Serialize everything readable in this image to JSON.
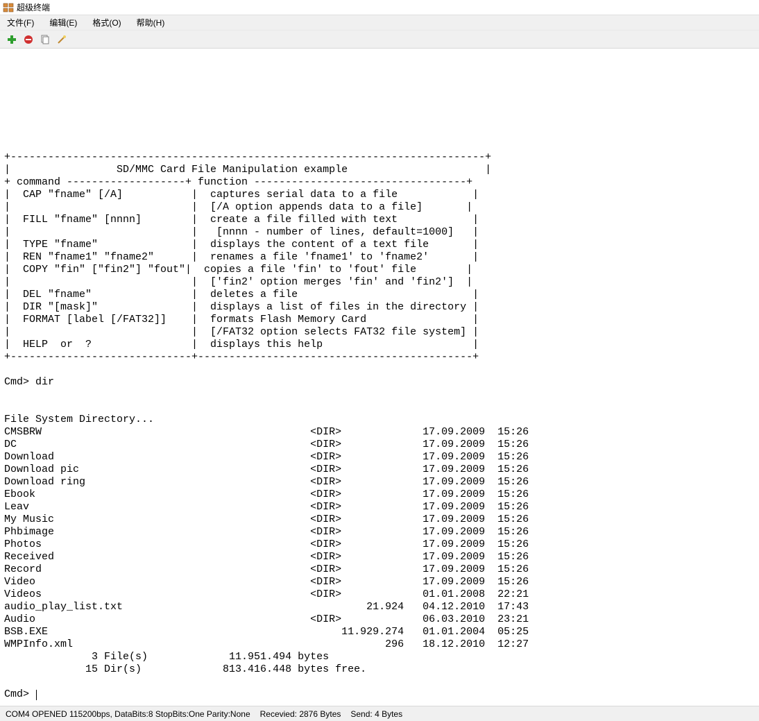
{
  "window": {
    "title": "超级终端"
  },
  "menu": {
    "file": "文件(F)",
    "edit": "编辑(E)",
    "format": "格式(O)",
    "help": "帮助(H)"
  },
  "toolbar": {
    "add_icon": "add-icon",
    "remove_icon": "remove-icon",
    "copy_icon": "copy-icon",
    "wand_icon": "wand-icon"
  },
  "terminal": {
    "blank_lead_lines": 8,
    "help_header_border": "+----------------------------------------------------------------------------+",
    "help_title": "|                 SD/MMC Card File Manipulation example                      |",
    "help_subheader": "+ command -------------------+ function ----------------------------------+",
    "help_rows": [
      "|  CAP \"fname\" [/A]           |  captures serial data to a file            |",
      "|                             |  [/A option appends data to a file]       |",
      "|  FILL \"fname\" [nnnn]        |  create a file filled with text            |",
      "|                             |   [nnnn - number of lines, default=1000]   |",
      "|  TYPE \"fname\"               |  displays the content of a text file       |",
      "|  REN \"fname1\" \"fname2\"      |  renames a file 'fname1' to 'fname2'       |",
      "|  COPY \"fin\" [\"fin2\"] \"fout\"|  copies a file 'fin' to 'fout' file        |",
      "|                             |  ['fin2' option merges 'fin' and 'fin2']  |",
      "|  DEL \"fname\"                |  deletes a file                            |",
      "|  DIR \"[mask]\"               |  displays a list of files in the directory |",
      "|  FORMAT [label [/FAT32]]    |  formats Flash Memory Card                 |",
      "|                             |  [/FAT32 option selects FAT32 file system] |",
      "|  HELP  or  ?                |  displays this help                        |"
    ],
    "help_footer_border": "+-----------------------------+--------------------------------------------+",
    "prompt1": "Cmd> dir",
    "dir_header": "File System Directory...",
    "dir_entries": [
      {
        "name": "CMSBRW",
        "type": "<DIR>",
        "size": "",
        "date": "17.09.2009",
        "time": "15:26"
      },
      {
        "name": "DC",
        "type": "<DIR>",
        "size": "",
        "date": "17.09.2009",
        "time": "15:26"
      },
      {
        "name": "Download",
        "type": "<DIR>",
        "size": "",
        "date": "17.09.2009",
        "time": "15:26"
      },
      {
        "name": "Download pic",
        "type": "<DIR>",
        "size": "",
        "date": "17.09.2009",
        "time": "15:26"
      },
      {
        "name": "Download ring",
        "type": "<DIR>",
        "size": "",
        "date": "17.09.2009",
        "time": "15:26"
      },
      {
        "name": "Ebook",
        "type": "<DIR>",
        "size": "",
        "date": "17.09.2009",
        "time": "15:26"
      },
      {
        "name": "Leav",
        "type": "<DIR>",
        "size": "",
        "date": "17.09.2009",
        "time": "15:26"
      },
      {
        "name": "My Music",
        "type": "<DIR>",
        "size": "",
        "date": "17.09.2009",
        "time": "15:26"
      },
      {
        "name": "Phbimage",
        "type": "<DIR>",
        "size": "",
        "date": "17.09.2009",
        "time": "15:26"
      },
      {
        "name": "Photos",
        "type": "<DIR>",
        "size": "",
        "date": "17.09.2009",
        "time": "15:26"
      },
      {
        "name": "Received",
        "type": "<DIR>",
        "size": "",
        "date": "17.09.2009",
        "time": "15:26"
      },
      {
        "name": "Record",
        "type": "<DIR>",
        "size": "",
        "date": "17.09.2009",
        "time": "15:26"
      },
      {
        "name": "Video",
        "type": "<DIR>",
        "size": "",
        "date": "17.09.2009",
        "time": "15:26"
      },
      {
        "name": "Videos",
        "type": "<DIR>",
        "size": "",
        "date": "01.01.2008",
        "time": "22:21"
      },
      {
        "name": "audio_play_list.txt",
        "type": "",
        "size": "21.924",
        "date": "04.12.2010",
        "time": "17:43"
      },
      {
        "name": "Audio",
        "type": "<DIR>",
        "size": "",
        "date": "06.03.2010",
        "time": "23:21"
      },
      {
        "name": "BSB.EXE",
        "type": "",
        "size": "11.929.274",
        "date": "01.01.2004",
        "time": "05:25"
      },
      {
        "name": "WMPInfo.xml",
        "type": "",
        "size": "296",
        "date": "18.12.2010",
        "time": "12:27"
      }
    ],
    "summary1": "              3 File(s)             11.951.494 bytes",
    "summary2": "             15 Dir(s)             813.416.448 bytes free.",
    "prompt2": "Cmd> "
  },
  "status": {
    "conn": "COM4 OPENED 115200bps, DataBits:8 StopBits:One Parity:None",
    "recv": "Recevied: 2876 Bytes",
    "send": "Send: 4 Bytes"
  },
  "columns": {
    "name_w": 49,
    "type_w": 5,
    "size_w": 10,
    "date_w": 13,
    "time_w": 7
  }
}
